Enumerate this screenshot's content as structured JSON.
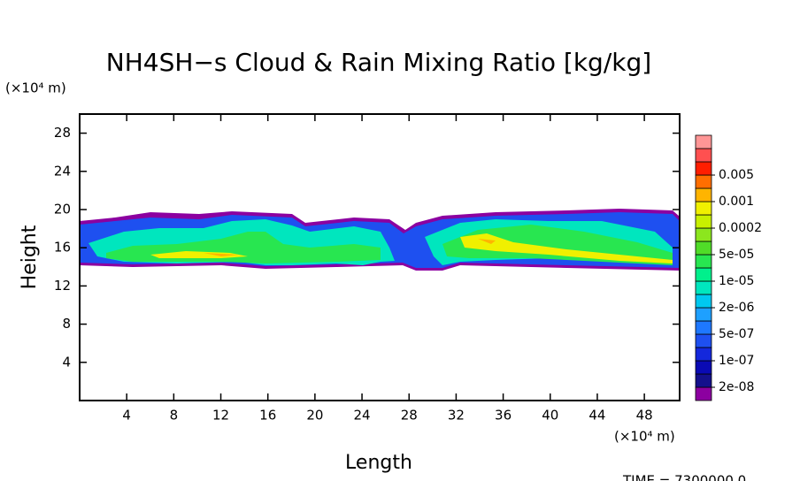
{
  "chart_data": {
    "type": "contour",
    "title": "NH4SH−s Cloud & Rain Mixing Ratio [kg/kg]",
    "x_label": "Length",
    "y_label": "Height",
    "x_unit": "(×10⁴ m)",
    "y_unit": "(×10⁴ m)",
    "time_label": "TIME = 7300000.0",
    "xlim": [
      0,
      51
    ],
    "ylim": [
      0,
      30
    ],
    "xticks": [
      4,
      8,
      12,
      16,
      20,
      24,
      28,
      32,
      36,
      40,
      44,
      48
    ],
    "yticks": [
      4,
      8,
      12,
      16,
      20,
      24,
      28
    ],
    "colorbar": {
      "levels": [
        {
          "value": 2e-08,
          "label": "2e-08"
        },
        {
          "value": 1e-07,
          "label": "1e-07"
        },
        {
          "value": 5e-07,
          "label": "5e-07"
        },
        {
          "value": 2e-06,
          "label": "2e-06"
        },
        {
          "value": 1e-05,
          "label": "1e-05"
        },
        {
          "value": 5e-05,
          "label": "5e-05"
        },
        {
          "value": 0.0002,
          "label": "0.0002"
        },
        {
          "value": 0.001,
          "label": "0.001"
        },
        {
          "value": 0.005,
          "label": "0.005"
        }
      ],
      "colors": [
        "#8c00a0",
        "#14108c",
        "#0a0ab4",
        "#1428dc",
        "#1e50f0",
        "#1e78ff",
        "#1ea0ff",
        "#00c8f0",
        "#00e6be",
        "#00f08c",
        "#28e650",
        "#50dc28",
        "#8ce61e",
        "#c8f000",
        "#f0f000",
        "#ffb400",
        "#ff6e00",
        "#ff1e00"
      ],
      "top_colors": [
        "#ff5050",
        "#ff9696"
      ]
    }
  }
}
